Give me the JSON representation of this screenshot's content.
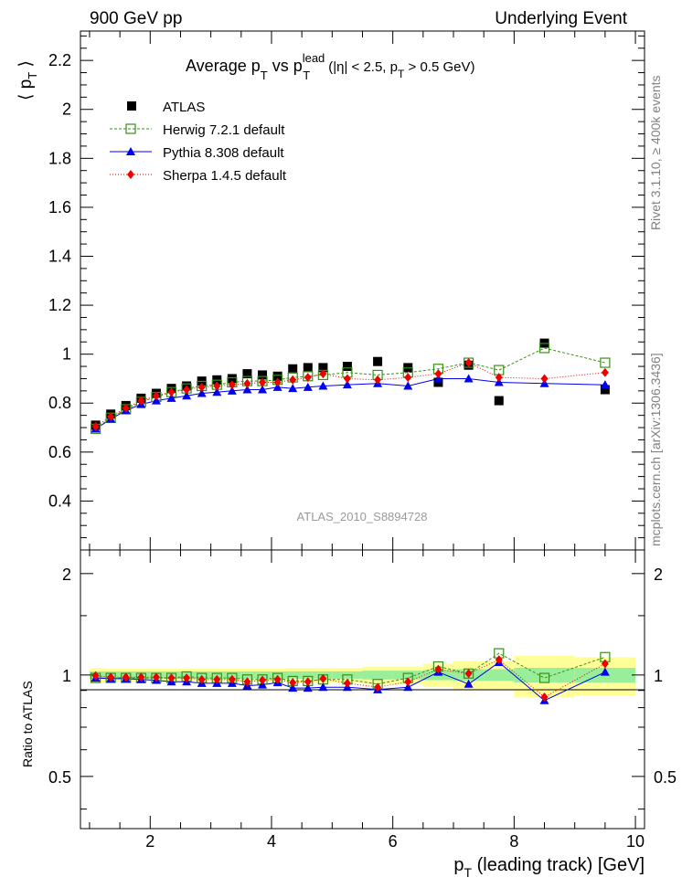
{
  "header": {
    "left": "900 GeV pp",
    "right": "Underlying Event"
  },
  "side": {
    "rivet": "Rivet 3.1.10, ≥ 400k events",
    "mcplots": "mcplots.cern.ch [arXiv:1306.3436]"
  },
  "analysis_id": "ATLAS_2010_S8894728",
  "chart_data": [
    {
      "type": "scatter",
      "title_parts": {
        "prefix": "Average p",
        "sub1": "T",
        "mid": " vs p",
        "sup": "lead",
        "sub2": "T",
        "cut_a": "(|η| < 2.5, p",
        "cut_sub": "T",
        "cut_b": " > 0.5 GeV)"
      },
      "ylabel": "⟨ p_T ⟩",
      "xlabel": "p_T (leading track) [GeV]",
      "xlim": [
        0.85,
        10.15
      ],
      "ylim": [
        0.2,
        2.32
      ],
      "yticks": [
        "0.4",
        "0.6",
        "0.8",
        "1",
        "1.2",
        "1.4",
        "1.6",
        "1.8",
        "2",
        "2.2"
      ],
      "x": [
        1.1,
        1.35,
        1.6,
        1.85,
        2.1,
        2.35,
        2.6,
        2.85,
        3.1,
        3.35,
        3.6,
        3.85,
        4.1,
        4.35,
        4.6,
        4.85,
        5.25,
        5.75,
        6.25,
        6.75,
        7.25,
        7.75,
        8.5,
        9.5
      ],
      "series": [
        {
          "name": "ATLAS",
          "values": [
            0.71,
            0.755,
            0.79,
            0.82,
            0.84,
            0.86,
            0.87,
            0.89,
            0.895,
            0.9,
            0.92,
            0.915,
            0.91,
            0.94,
            0.945,
            0.945,
            0.95,
            0.97,
            0.945,
            0.885,
            0.955,
            0.81,
            1.045,
            0.855
          ]
        },
        {
          "name": "Herwig 7.2.1 default",
          "values": [
            0.695,
            0.74,
            0.775,
            0.805,
            0.825,
            0.845,
            0.86,
            0.87,
            0.875,
            0.885,
            0.89,
            0.89,
            0.895,
            0.905,
            0.91,
            0.915,
            0.925,
            0.915,
            0.925,
            0.94,
            0.965,
            0.935,
            1.025,
            0.965
          ]
        },
        {
          "name": "Pythia 8.308 default",
          "values": [
            0.695,
            0.735,
            0.77,
            0.795,
            0.81,
            0.82,
            0.83,
            0.84,
            0.845,
            0.85,
            0.855,
            0.855,
            0.865,
            0.86,
            0.865,
            0.87,
            0.875,
            0.88,
            0.87,
            0.9,
            0.9,
            0.885,
            0.88,
            0.875
          ]
        },
        {
          "name": "Sherpa 1.4.5 default",
          "values": [
            0.705,
            0.745,
            0.78,
            0.81,
            0.83,
            0.845,
            0.855,
            0.865,
            0.87,
            0.875,
            0.88,
            0.885,
            0.885,
            0.895,
            0.905,
            0.92,
            0.9,
            0.895,
            0.905,
            0.92,
            0.965,
            0.905,
            0.9,
            0.925
          ]
        }
      ],
      "colors": {
        "ATLAS": "#000000",
        "Herwig 7.2.1 default": "#3a8f1a",
        "Pythia 8.308 default": "#0000ee",
        "Sherpa 1.4.5 default": "#ee0000"
      }
    },
    {
      "type": "line",
      "ylabel": "Ratio to ATLAS",
      "ylim": [
        0.35,
        2.35
      ],
      "yticks": [
        "0.5",
        "1",
        "2"
      ],
      "xticks": [
        "2",
        "4",
        "6",
        "8",
        "10"
      ],
      "x": [
        1.1,
        1.35,
        1.6,
        1.85,
        2.1,
        2.35,
        2.6,
        2.85,
        3.1,
        3.35,
        3.6,
        3.85,
        4.1,
        4.35,
        4.6,
        4.85,
        5.25,
        5.75,
        6.25,
        6.75,
        7.25,
        7.75,
        8.5,
        9.5
      ],
      "x_edges": [
        1.0,
        1.25,
        1.5,
        1.75,
        2.0,
        2.25,
        2.5,
        2.75,
        3.0,
        3.25,
        3.5,
        3.75,
        4.0,
        4.25,
        4.5,
        4.75,
        5.0,
        5.5,
        6.0,
        6.5,
        7.0,
        7.5,
        8.0,
        9.0,
        10.0
      ],
      "band_inner": [
        0.025,
        0.025,
        0.025,
        0.025,
        0.025,
        0.025,
        0.025,
        0.025,
        0.025,
        0.025,
        0.025,
        0.025,
        0.025,
        0.025,
        0.025,
        0.025,
        0.025,
        0.03,
        0.03,
        0.035,
        0.04,
        0.04,
        0.05,
        0.05
      ],
      "band_outer": [
        0.05,
        0.045,
        0.045,
        0.045,
        0.045,
        0.045,
        0.045,
        0.045,
        0.045,
        0.045,
        0.045,
        0.045,
        0.045,
        0.05,
        0.05,
        0.05,
        0.05,
        0.06,
        0.06,
        0.08,
        0.1,
        0.1,
        0.14,
        0.13
      ],
      "series": [
        {
          "name": "Herwig 7.2.1 default",
          "values": [
            0.98,
            0.98,
            0.98,
            0.98,
            0.98,
            0.98,
            0.99,
            0.98,
            0.98,
            0.98,
            0.97,
            0.97,
            0.98,
            0.96,
            0.96,
            0.97,
            0.97,
            0.94,
            0.98,
            1.06,
            1.01,
            1.16,
            0.98,
            1.13
          ]
        },
        {
          "name": "Pythia 8.308 default",
          "values": [
            0.98,
            0.975,
            0.975,
            0.97,
            0.965,
            0.955,
            0.955,
            0.945,
            0.945,
            0.945,
            0.93,
            0.935,
            0.95,
            0.915,
            0.915,
            0.92,
            0.92,
            0.905,
            0.92,
            1.02,
            0.94,
            1.09,
            0.84,
            1.02
          ]
        },
        {
          "name": "Sherpa 1.4.5 default",
          "values": [
            0.995,
            0.985,
            0.985,
            0.985,
            0.985,
            0.98,
            0.98,
            0.97,
            0.97,
            0.97,
            0.955,
            0.965,
            0.97,
            0.95,
            0.955,
            0.975,
            0.945,
            0.92,
            0.955,
            1.04,
            1.01,
            1.11,
            0.86,
            1.08
          ]
        }
      ]
    }
  ]
}
